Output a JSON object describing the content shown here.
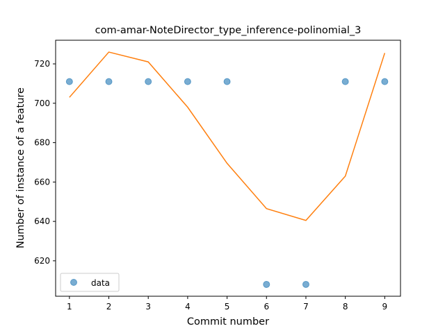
{
  "chart_data": {
    "type": "scatter",
    "title": "com-amar-NoteDirector_type_inference-polinomial_3",
    "xlabel": "Commit number",
    "ylabel": "Number of instance of a feature",
    "xlim": [
      0.65,
      9.4
    ],
    "ylim": [
      602,
      732
    ],
    "xticks": [
      1,
      2,
      3,
      4,
      5,
      6,
      7,
      8,
      9
    ],
    "yticks": [
      620,
      640,
      660,
      680,
      700,
      720
    ],
    "grid": false,
    "legend_position": "lower-left",
    "series": [
      {
        "name": "data",
        "kind": "scatter",
        "color": "#1f77b4",
        "x": [
          1,
          2,
          3,
          4,
          5,
          6,
          7,
          8,
          9
        ],
        "y": [
          711,
          711,
          711,
          711,
          711,
          608,
          608,
          711,
          711
        ]
      },
      {
        "kind": "line",
        "color": "#ff7f0e",
        "x": [
          1,
          2,
          3,
          4,
          5,
          6,
          7,
          8,
          9
        ],
        "y": [
          703,
          726,
          721,
          698,
          669.5,
          646.5,
          640.5,
          663,
          725.5
        ]
      }
    ]
  }
}
